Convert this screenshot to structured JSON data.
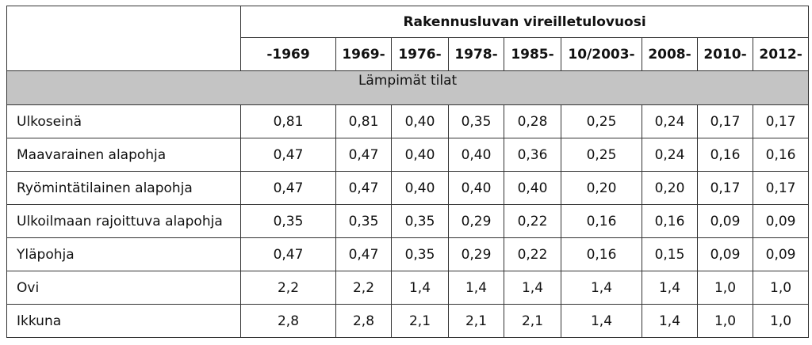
{
  "table": {
    "title": "Rakennusluvan vireilletulovuosi",
    "columns": [
      "-1969",
      "1969-",
      "1976-",
      "1978-",
      "1985-",
      "10/2003-",
      "2008-",
      "2010-",
      "2012-"
    ],
    "section": "Lämpimät tilat",
    "rows": [
      {
        "label": "Ulkoseinä",
        "values": [
          "0,81",
          "0,81",
          "0,40",
          "0,35",
          "0,28",
          "0,25",
          "0,24",
          "0,17",
          "0,17"
        ]
      },
      {
        "label": "Maavarainen alapohja",
        "values": [
          "0,47",
          "0,47",
          "0,40",
          "0,40",
          "0,36",
          "0,25",
          "0,24",
          "0,16",
          "0,16"
        ]
      },
      {
        "label": "Ryömintätilainen alapohja",
        "values": [
          "0,47",
          "0,47",
          "0,40",
          "0,40",
          "0,40",
          "0,20",
          "0,20",
          "0,17",
          "0,17"
        ]
      },
      {
        "label": "Ulkoilmaan rajoittuva alapohja",
        "values": [
          "0,35",
          "0,35",
          "0,35",
          "0,29",
          "0,22",
          "0,16",
          "0,16",
          "0,09",
          "0,09"
        ]
      },
      {
        "label": "Yläpohja",
        "values": [
          "0,47",
          "0,47",
          "0,35",
          "0,29",
          "0,22",
          "0,16",
          "0,15",
          "0,09",
          "0,09"
        ]
      },
      {
        "label": "Ovi",
        "values": [
          "2,2",
          "2,2",
          "1,4",
          "1,4",
          "1,4",
          "1,4",
          "1,4",
          "1,0",
          "1,0"
        ]
      },
      {
        "label": "Ikkuna",
        "values": [
          "2,8",
          "2,8",
          "2,1",
          "2,1",
          "2,1",
          "1,4",
          "1,4",
          "1,0",
          "1,0"
        ]
      }
    ]
  }
}
